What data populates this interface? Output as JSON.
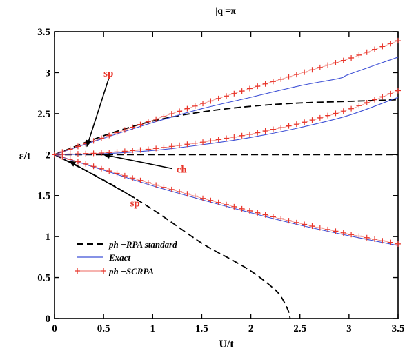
{
  "chart_data": {
    "type": "line",
    "title": "|q|=π",
    "xlabel": "U/t",
    "ylabel": "ε/t",
    "xlim": [
      0,
      3.5
    ],
    "ylim": [
      0,
      3.5
    ],
    "x_ticks": [
      "0",
      "0.5",
      "1",
      "1.5",
      "2",
      "2.5",
      "3",
      "3.5"
    ],
    "y_ticks": [
      "0",
      "0.5",
      "1",
      "1.5",
      "2",
      "2.5",
      "3",
      "3.5"
    ],
    "grid": false,
    "legend_position": "bottom-left",
    "legend": [
      {
        "label": "ph −RPA standard",
        "style": "dashed",
        "color": "#000000"
      },
      {
        "label": "Exact",
        "style": "solid",
        "color": "#3f51d6"
      },
      {
        "label": "ph −SCRPA",
        "style": "plus-markers",
        "color": "#e8352a"
      }
    ],
    "series": [
      {
        "legend": 0,
        "x": [
          0,
          0.5,
          1,
          1.5,
          2,
          2.5,
          3,
          3.5
        ],
        "y": [
          2.0,
          2.23,
          2.41,
          2.52,
          2.59,
          2.63,
          2.65,
          2.67
        ]
      },
      {
        "legend": 0,
        "x": [
          0,
          3.5
        ],
        "y": [
          2.0,
          2.0
        ]
      },
      {
        "legend": 0,
        "x": [
          0,
          0.5,
          1,
          1.5,
          1.8,
          2.0,
          2.2,
          2.3,
          2.38,
          2.4
        ],
        "y": [
          2.0,
          1.69,
          1.33,
          0.92,
          0.72,
          0.58,
          0.4,
          0.28,
          0.1,
          0.0
        ]
      },
      {
        "legend": 1,
        "x": [
          0,
          0.5,
          1,
          1.5,
          2,
          2.5,
          2.9,
          3,
          3.5
        ],
        "y": [
          2.0,
          2.2,
          2.39,
          2.56,
          2.7,
          2.84,
          2.93,
          2.98,
          3.19
        ]
      },
      {
        "legend": 1,
        "x": [
          0,
          0.5,
          1,
          1.5,
          2,
          2.5,
          3,
          3.5
        ],
        "y": [
          2.0,
          2.01,
          2.05,
          2.12,
          2.21,
          2.33,
          2.48,
          2.7
        ]
      },
      {
        "legend": 1,
        "x": [
          0,
          0.5,
          1,
          1.5,
          2,
          2.5,
          3,
          3.5
        ],
        "y": [
          2.0,
          1.81,
          1.62,
          1.45,
          1.29,
          1.14,
          1.01,
          0.89
        ]
      },
      {
        "legend": 2,
        "x": [
          0,
          0.5,
          1,
          1.5,
          2,
          2.5,
          3,
          3.5
        ],
        "y": [
          2.0,
          2.21,
          2.42,
          2.62,
          2.81,
          2.99,
          3.17,
          3.39
        ]
      },
      {
        "legend": 2,
        "x": [
          0,
          0.5,
          1,
          1.5,
          2,
          2.5,
          3,
          3.5
        ],
        "y": [
          2.0,
          2.02,
          2.07,
          2.15,
          2.25,
          2.38,
          2.55,
          2.78
        ]
      },
      {
        "legend": 2,
        "x": [
          0,
          0.5,
          1,
          1.5,
          2,
          2.5,
          3,
          3.5
        ],
        "y": [
          2.0,
          1.82,
          1.64,
          1.47,
          1.31,
          1.16,
          1.03,
          0.91
        ]
      }
    ],
    "annotations": [
      {
        "text": "sp",
        "label_at": [
          0.55,
          2.92
        ],
        "arrow_to": [
          0.33,
          2.1
        ]
      },
      {
        "text": "ch",
        "label_at": [
          1.2,
          1.83
        ],
        "arrow_to": [
          0.5,
          2.0
        ]
      },
      {
        "text": "sp",
        "label_at": [
          0.82,
          1.47
        ],
        "arrow_to": [
          0.15,
          1.92
        ]
      }
    ]
  }
}
